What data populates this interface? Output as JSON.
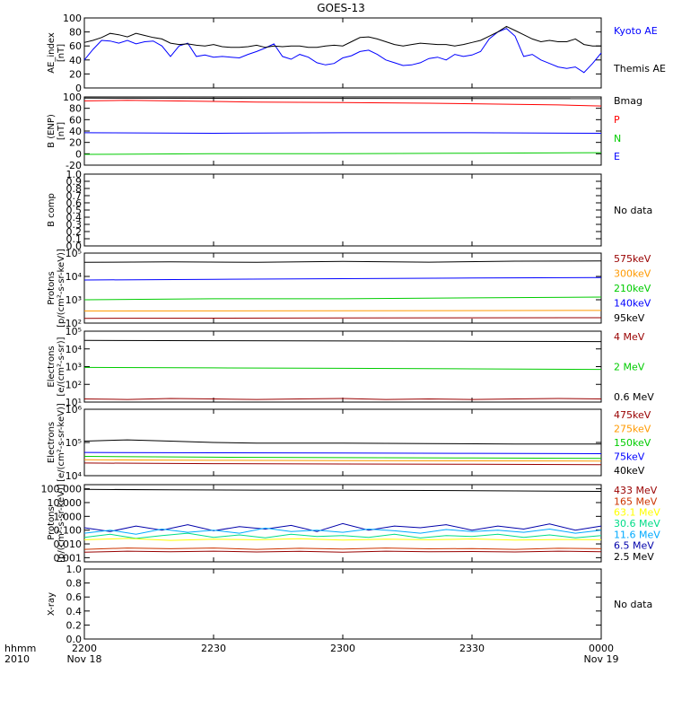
{
  "header": {
    "title": "GOES-13"
  },
  "x_axis": {
    "left_label_1": "hhmm",
    "left_label_2": "2010",
    "ticks": [
      {
        "label": "2200",
        "sub": "Nov 18",
        "t": 0
      },
      {
        "label": "2230",
        "sub": "",
        "t": 30
      },
      {
        "label": "2300",
        "sub": "",
        "t": 60
      },
      {
        "label": "2330",
        "sub": "",
        "t": 90
      },
      {
        "label": "0000",
        "sub": "Nov 19",
        "t": 120
      }
    ]
  },
  "colors": {
    "black": "#000000",
    "red": "#ff0000",
    "green": "#00cc00",
    "blue": "#0000ff",
    "darkred": "#990000",
    "orange": "#ff9900",
    "cyan": "#00aaff",
    "purple": "#6600cc",
    "yellow": "#ffff00",
    "teal": "#00dd88",
    "darkblue": "#0000aa"
  },
  "chart_data": [
    {
      "type": "line",
      "panel": "ae",
      "ylabel_1": "AE_index",
      "ylabel_2": "[nT]",
      "scale": "linear",
      "ylim": [
        0,
        100
      ],
      "yticks": [
        "0",
        "20",
        "40",
        "60",
        "80",
        "100"
      ],
      "ytick_values": [
        0,
        20,
        40,
        60,
        80,
        100
      ],
      "series": [
        {
          "name": "Kyoto AE",
          "color": "#0000ff",
          "x": [
            0,
            2,
            4,
            6,
            8,
            10,
            12,
            14,
            16,
            18,
            20,
            22,
            24,
            26,
            28,
            30,
            32,
            34,
            36,
            38,
            40,
            42,
            44,
            46,
            48,
            50,
            52,
            54,
            56,
            58,
            60,
            62,
            64,
            66,
            68,
            70,
            72,
            74,
            76,
            78,
            80,
            82,
            84,
            86,
            88,
            90,
            92,
            94,
            96,
            98,
            100,
            102,
            104,
            106,
            108,
            110,
            112,
            114,
            116,
            118,
            120
          ],
          "values": [
            40,
            55,
            68,
            67,
            64,
            68,
            63,
            66,
            67,
            60,
            45,
            60,
            64,
            45,
            47,
            44,
            45,
            44,
            43,
            48,
            52,
            57,
            63,
            45,
            41,
            48,
            44,
            36,
            33,
            35,
            43,
            46,
            52,
            54,
            48,
            40,
            36,
            32,
            33,
            36,
            42,
            44,
            40,
            48,
            45,
            47,
            52,
            70,
            80,
            85,
            74,
            45,
            48,
            40,
            35,
            30,
            28,
            30,
            22,
            35,
            50
          ]
        },
        {
          "name": "Themis AE",
          "color": "#000000",
          "x": [
            0,
            2,
            4,
            6,
            8,
            10,
            12,
            14,
            16,
            18,
            20,
            22,
            24,
            26,
            28,
            30,
            32,
            34,
            36,
            38,
            40,
            42,
            44,
            46,
            48,
            50,
            52,
            54,
            56,
            58,
            60,
            62,
            64,
            66,
            68,
            70,
            72,
            74,
            76,
            78,
            80,
            82,
            84,
            86,
            88,
            90,
            92,
            94,
            96,
            98,
            100,
            102,
            104,
            106,
            108,
            110,
            112,
            114,
            116,
            118,
            120
          ],
          "values": [
            65,
            68,
            72,
            78,
            76,
            73,
            78,
            75,
            72,
            70,
            64,
            62,
            63,
            61,
            60,
            62,
            59,
            58,
            58,
            59,
            61,
            58,
            60,
            59,
            60,
            60,
            58,
            58,
            60,
            61,
            60,
            66,
            72,
            73,
            70,
            66,
            62,
            60,
            62,
            64,
            63,
            62,
            62,
            60,
            62,
            65,
            68,
            74,
            80,
            88,
            82,
            76,
            70,
            66,
            68,
            66,
            66,
            70,
            62,
            60,
            60
          ]
        }
      ]
    },
    {
      "type": "line",
      "panel": "b_enp",
      "ylabel_1": "B (ENP)",
      "ylabel_2": "[nT]",
      "scale": "linear",
      "ylim": [
        -20,
        100
      ],
      "yticks": [
        "-20",
        "0",
        "20",
        "40",
        "60",
        "80",
        "100"
      ],
      "ytick_values": [
        -20,
        0,
        20,
        40,
        60,
        80,
        100
      ],
      "series": [
        {
          "name": "Bmag",
          "color": "#000000",
          "x": [
            0,
            120
          ],
          "values": [
            98,
            97
          ]
        },
        {
          "name": "P",
          "color": "#ff0000",
          "x": [
            0,
            10,
            20,
            40,
            60,
            80,
            100,
            110,
            120
          ],
          "values": [
            93,
            94,
            93,
            91,
            90,
            89,
            87,
            86,
            84
          ]
        },
        {
          "name": "N",
          "color": "#00cc00",
          "x": [
            0,
            30,
            60,
            90,
            120
          ],
          "values": [
            -1,
            0,
            0,
            1,
            2
          ]
        },
        {
          "name": "E",
          "color": "#0000ff",
          "x": [
            0,
            30,
            60,
            90,
            120
          ],
          "values": [
            37,
            36,
            37,
            37,
            36
          ]
        }
      ]
    },
    {
      "type": "line",
      "panel": "b_comp",
      "ylabel_1": "B comp",
      "scale": "linear",
      "ylim": [
        0,
        1
      ],
      "yticks": [
        "0.0",
        "0.1",
        "0.2",
        "0.3",
        "0.4",
        "0.5",
        "0.6",
        "0.7",
        "0.8",
        "0.9",
        "1.0"
      ],
      "ytick_values": [
        0,
        0.1,
        0.2,
        0.3,
        0.4,
        0.5,
        0.6,
        0.7,
        0.8,
        0.9,
        1.0
      ],
      "note": "No data",
      "series": []
    },
    {
      "type": "line",
      "panel": "protons_low",
      "ylabel_1": "Protons",
      "ylabel_2": "[p/(cm²-s-sr-keV)]",
      "scale": "log",
      "ylim": [
        100,
        100000
      ],
      "yticks": [
        "10²",
        "10³",
        "10⁴",
        "10⁵"
      ],
      "ytick_values": [
        100,
        1000,
        10000,
        100000
      ],
      "legend": [
        "575keV",
        "300keV",
        "210keV",
        "140keV",
        "95keV"
      ],
      "legend_colors": [
        "#990000",
        "#ff9900",
        "#00cc00",
        "#0000ff",
        "#000000"
      ],
      "series": [
        {
          "name": "95keV",
          "color": "#000000",
          "x": [
            0,
            20,
            40,
            60,
            80,
            100,
            120
          ],
          "values": [
            40000,
            42000,
            40000,
            44000,
            41000,
            45000,
            46000
          ]
        },
        {
          "name": "140keV",
          "color": "#0000ff",
          "x": [
            0,
            30,
            60,
            90,
            120
          ],
          "values": [
            7000,
            7500,
            8000,
            8500,
            9000
          ]
        },
        {
          "name": "210keV",
          "color": "#00cc00",
          "x": [
            0,
            30,
            60,
            90,
            120
          ],
          "values": [
            1000,
            1100,
            1100,
            1200,
            1300
          ]
        },
        {
          "name": "300keV",
          "color": "#ff9900",
          "x": [
            0,
            60,
            120
          ],
          "values": [
            330,
            340,
            350
          ]
        },
        {
          "name": "575keV",
          "color": "#990000",
          "x": [
            0,
            60,
            120
          ],
          "values": [
            160,
            165,
            170
          ]
        }
      ]
    },
    {
      "type": "line",
      "panel": "electrons_mev",
      "ylabel_1": "Electrons",
      "ylabel_2": "[e/(cm²-s-sr)]",
      "scale": "log",
      "ylim": [
        10,
        100000
      ],
      "yticks": [
        "10¹",
        "10²",
        "10³",
        "10⁴",
        "10⁵"
      ],
      "ytick_values": [
        10,
        100,
        1000,
        10000,
        100000
      ],
      "legend": [
        "4 MeV",
        "2 MeV",
        "0.6 MeV"
      ],
      "legend_colors": [
        "#990000",
        "#00cc00",
        "#000000"
      ],
      "series": [
        {
          "name": "0.6 MeV",
          "color": "#000000",
          "x": [
            0,
            30,
            60,
            90,
            120
          ],
          "values": [
            30000,
            29000,
            28000,
            27000,
            26000
          ]
        },
        {
          "name": "2 MeV",
          "color": "#00cc00",
          "x": [
            0,
            30,
            60,
            90,
            120
          ],
          "values": [
            900,
            850,
            800,
            750,
            700
          ]
        },
        {
          "name": "4 MeV",
          "color": "#990000",
          "x": [
            0,
            10,
            20,
            30,
            40,
            50,
            60,
            70,
            80,
            90,
            100,
            110,
            120
          ],
          "values": [
            15,
            14,
            16,
            15,
            14,
            15,
            16,
            14,
            15,
            14,
            15,
            16,
            15
          ]
        }
      ]
    },
    {
      "type": "line",
      "panel": "electrons_kev",
      "ylabel_1": "Electrons",
      "ylabel_2": "[e/(cm²-s-sr-keV)]",
      "scale": "log",
      "ylim": [
        10000,
        1000000
      ],
      "yticks": [
        "10⁴",
        "10⁵",
        "10⁶"
      ],
      "ytick_values": [
        10000,
        100000,
        1000000
      ],
      "legend": [
        "475keV",
        "275keV",
        "150keV",
        "75keV",
        "40keV"
      ],
      "legend_colors": [
        "#990000",
        "#ff9900",
        "#00cc00",
        "#0000ff",
        "#000000"
      ],
      "series": [
        {
          "name": "40keV",
          "color": "#000000",
          "x": [
            0,
            10,
            20,
            30,
            40,
            60,
            80,
            100,
            120
          ],
          "values": [
            110000,
            120000,
            110000,
            100000,
            95000,
            95000,
            92000,
            90000,
            90000
          ]
        },
        {
          "name": "75keV",
          "color": "#0000ff",
          "x": [
            0,
            30,
            60,
            90,
            120
          ],
          "values": [
            50000,
            49000,
            48000,
            47000,
            46000
          ]
        },
        {
          "name": "150keV",
          "color": "#00cc00",
          "x": [
            0,
            30,
            60,
            90,
            120
          ],
          "values": [
            38000,
            36000,
            35000,
            34000,
            33000
          ]
        },
        {
          "name": "275keV",
          "color": "#ff9900",
          "x": [
            0,
            30,
            60,
            90,
            120
          ],
          "values": [
            30000,
            29000,
            28500,
            28000,
            27500
          ]
        },
        {
          "name": "475keV",
          "color": "#990000",
          "x": [
            0,
            30,
            60,
            90,
            120
          ],
          "values": [
            24000,
            23000,
            22500,
            22000,
            21500
          ]
        }
      ]
    },
    {
      "type": "line",
      "panel": "protons_mev",
      "ylabel_1": "Protons",
      "ylabel_2": "[p/(cm²-s-sr-keV)]",
      "scale": "log",
      "ylim": [
        0.0005,
        200
      ],
      "yticks": [
        "0.001",
        "0.010",
        "0.100",
        "1.000",
        "10.000",
        "100.000"
      ],
      "ytick_values": [
        0.001,
        0.01,
        0.1,
        1,
        10,
        100
      ],
      "legend": [
        "433 MeV",
        "165 MeV",
        "63.1 MeV",
        "30.6 MeV",
        "11.6 MeV",
        "6.5 MeV",
        "2.5 MeV"
      ],
      "legend_colors": [
        "#990000",
        "#cc3300",
        "#ffff00",
        "#00dd88",
        "#00aaff",
        "#0000aa",
        "#000000"
      ],
      "series": [
        {
          "name": "2.5 MeV",
          "color": "#000000",
          "x": [
            0,
            20,
            40,
            60,
            80,
            100,
            120
          ],
          "values": [
            90,
            85,
            80,
            78,
            75,
            70,
            65
          ]
        },
        {
          "name": "6.5 MeV",
          "color": "#0000aa",
          "x": [
            0,
            6,
            12,
            18,
            24,
            30,
            36,
            42,
            48,
            54,
            60,
            66,
            72,
            78,
            84,
            90,
            96,
            102,
            108,
            114,
            120
          ],
          "values": [
            0.15,
            0.08,
            0.2,
            0.1,
            0.25,
            0.09,
            0.18,
            0.12,
            0.22,
            0.08,
            0.3,
            0.1,
            0.2,
            0.15,
            0.25,
            0.1,
            0.2,
            0.12,
            0.28,
            0.1,
            0.2
          ]
        },
        {
          "name": "11.6 MeV",
          "color": "#00aaff",
          "x": [
            0,
            6,
            12,
            18,
            24,
            30,
            36,
            42,
            48,
            54,
            60,
            66,
            72,
            78,
            84,
            90,
            96,
            102,
            108,
            114,
            120
          ],
          "values": [
            0.06,
            0.1,
            0.05,
            0.12,
            0.07,
            0.1,
            0.06,
            0.14,
            0.08,
            0.1,
            0.07,
            0.12,
            0.09,
            0.06,
            0.11,
            0.08,
            0.1,
            0.07,
            0.12,
            0.06,
            0.1
          ]
        },
        {
          "name": "30.6 MeV",
          "color": "#00dd88",
          "x": [
            0,
            6,
            12,
            18,
            24,
            30,
            36,
            42,
            48,
            54,
            60,
            66,
            72,
            78,
            84,
            90,
            96,
            102,
            108,
            114,
            120
          ],
          "values": [
            0.03,
            0.05,
            0.025,
            0.04,
            0.06,
            0.03,
            0.045,
            0.028,
            0.05,
            0.035,
            0.04,
            0.03,
            0.05,
            0.027,
            0.04,
            0.035,
            0.05,
            0.03,
            0.045,
            0.028,
            0.04
          ]
        },
        {
          "name": "63.1 MeV",
          "color": "#ffff00",
          "x": [
            0,
            10,
            20,
            30,
            40,
            50,
            60,
            70,
            80,
            90,
            100,
            110,
            120
          ],
          "values": [
            0.02,
            0.025,
            0.018,
            0.022,
            0.02,
            0.024,
            0.019,
            0.022,
            0.02,
            0.023,
            0.019,
            0.021,
            0.02
          ]
        },
        {
          "name": "165 MeV",
          "color": "#cc3300",
          "x": [
            0,
            10,
            20,
            30,
            40,
            50,
            60,
            70,
            80,
            90,
            100,
            110,
            120
          ],
          "values": [
            0.004,
            0.005,
            0.0045,
            0.005,
            0.004,
            0.0048,
            0.0042,
            0.005,
            0.0044,
            0.0046,
            0.004,
            0.0048,
            0.0045
          ]
        },
        {
          "name": "433 MeV",
          "color": "#990000",
          "x": [
            0,
            10,
            20,
            30,
            40,
            50,
            60,
            70,
            80,
            90,
            100,
            110,
            120
          ],
          "values": [
            0.0025,
            0.003,
            0.0027,
            0.003,
            0.0026,
            0.0029,
            0.0025,
            0.003,
            0.0027,
            0.0028,
            0.0026,
            0.003,
            0.0027
          ]
        }
      ]
    },
    {
      "type": "line",
      "panel": "xray",
      "ylabel_1": "X-ray",
      "scale": "linear",
      "ylim": [
        0,
        1
      ],
      "yticks": [
        "0.0",
        "0.2",
        "0.4",
        "0.6",
        "0.8",
        "1.0"
      ],
      "ytick_values": [
        0,
        0.2,
        0.4,
        0.6,
        0.8,
        1.0
      ],
      "note": "No data",
      "series": []
    }
  ]
}
